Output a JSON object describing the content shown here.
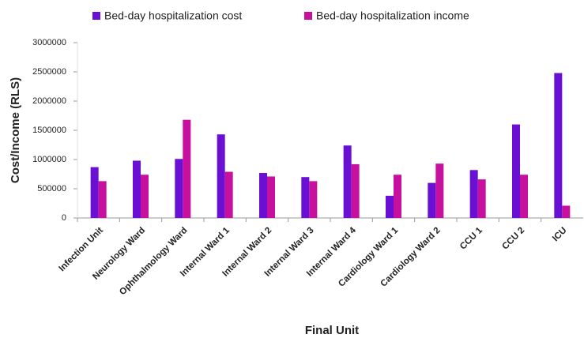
{
  "chart_data": {
    "type": "bar",
    "xlabel": "Final Unit",
    "ylabel": "Cost/Income (RLS)",
    "categories": [
      "Infection Unit",
      "Neurology Ward",
      "Ophthalmology Ward",
      "Internal Ward 1",
      "Internal Ward 2",
      "Internal Ward 3",
      "Internal Ward 4",
      "Cardiology Ward 1",
      "Cardiology Ward 2",
      "CCU 1",
      "CCU 2",
      "ICU"
    ],
    "series": [
      {
        "name": "Bed-day hospitalization cost",
        "color": "#6a0fd4",
        "values": [
          870000,
          980000,
          1010000,
          1430000,
          770000,
          700000,
          1240000,
          380000,
          600000,
          820000,
          1600000,
          2480000
        ]
      },
      {
        "name": "Bed-day hospitalization income",
        "color": "#c8109e",
        "values": [
          630000,
          740000,
          1680000,
          790000,
          710000,
          630000,
          920000,
          740000,
          930000,
          660000,
          740000,
          210000
        ]
      }
    ],
    "ylim": [
      0,
      3000000
    ],
    "yticks": [
      0,
      500000,
      1000000,
      1500000,
      2000000,
      2500000,
      3000000
    ],
    "legend": "top"
  }
}
